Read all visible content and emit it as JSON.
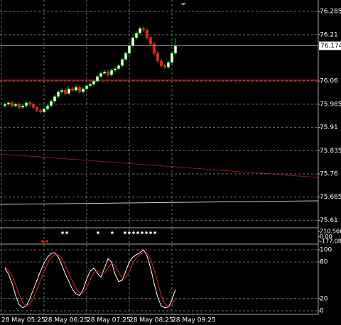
{
  "chart_data": [
    {
      "type": "candlestick",
      "x": [
        "28 May 05:30",
        "28 May 05:35",
        "28 May 05:40",
        "28 May 05:45",
        "28 May 05:50",
        "28 May 05:55",
        "28 May 06:00",
        "28 May 06:05",
        "28 May 06:10",
        "28 May 06:15",
        "28 May 06:20",
        "28 May 06:25",
        "28 May 06:30",
        "28 May 06:35",
        "28 May 06:40",
        "28 May 06:45",
        "28 May 06:50",
        "28 May 06:55",
        "28 May 07:00",
        "28 May 07:05",
        "28 May 07:10",
        "28 May 07:15",
        "28 May 07:20",
        "28 May 07:25",
        "28 May 07:30",
        "28 May 07:35",
        "28 May 07:40",
        "28 May 07:45",
        "28 May 07:50",
        "28 May 07:55",
        "28 May 08:00",
        "28 May 08:05",
        "28 May 08:10",
        "28 May 08:15",
        "28 May 08:20",
        "28 May 08:25",
        "28 May 08:30",
        "28 May 08:35",
        "28 May 08:40",
        "28 May 08:45",
        "28 May 08:50",
        "28 May 08:55",
        "28 May 09:00",
        "28 May 09:05",
        "28 May 09:10",
        "28 May 09:15",
        "28 May 09:20",
        "28 May 09:25",
        "28 May 09:30"
      ],
      "open": [
        75.98,
        75.985,
        75.99,
        75.98,
        75.985,
        75.975,
        75.98,
        75.99,
        75.985,
        75.975,
        75.965,
        75.96,
        75.97,
        75.98,
        75.995,
        76.01,
        76.025,
        76.03,
        76.02,
        76.035,
        76.03,
        76.04,
        76.025,
        76.035,
        76.045,
        76.05,
        76.06,
        76.075,
        76.085,
        76.09,
        76.08,
        76.095,
        76.1,
        76.11,
        76.13,
        76.15,
        76.175,
        76.2,
        76.215,
        76.23,
        76.225,
        76.2,
        76.18,
        76.15,
        76.125,
        76.11,
        76.105,
        76.12,
        76.15
      ],
      "high": [
        75.991,
        75.996,
        75.996,
        75.991,
        75.991,
        75.986,
        75.996,
        75.996,
        75.991,
        75.981,
        75.971,
        75.976,
        75.986,
        76.001,
        76.016,
        76.031,
        76.036,
        76.036,
        76.041,
        76.041,
        76.046,
        76.046,
        76.041,
        76.051,
        76.056,
        76.066,
        76.081,
        76.091,
        76.096,
        76.096,
        76.101,
        76.106,
        76.116,
        76.136,
        76.156,
        76.181,
        76.206,
        76.221,
        76.236,
        76.236,
        76.231,
        76.206,
        76.186,
        76.156,
        76.131,
        76.116,
        76.126,
        76.156,
        76.2
      ],
      "low": [
        75.974,
        75.979,
        75.974,
        75.974,
        75.969,
        75.969,
        75.974,
        75.979,
        75.969,
        75.959,
        75.954,
        75.954,
        75.964,
        75.974,
        75.989,
        76.004,
        76.019,
        76.014,
        76.014,
        76.024,
        76.024,
        76.019,
        76.019,
        76.029,
        76.039,
        76.044,
        76.054,
        76.069,
        76.079,
        76.074,
        76.074,
        76.089,
        76.094,
        76.104,
        76.124,
        76.144,
        76.169,
        76.194,
        76.209,
        76.219,
        76.194,
        76.174,
        76.144,
        76.119,
        76.104,
        76.099,
        76.099,
        76.114,
        76.144
      ],
      "close": [
        75.985,
        75.99,
        75.98,
        75.985,
        75.975,
        75.98,
        75.99,
        75.985,
        75.975,
        75.965,
        75.96,
        75.97,
        75.98,
        75.995,
        76.01,
        76.025,
        76.03,
        76.02,
        76.035,
        76.03,
        76.04,
        76.025,
        76.035,
        76.045,
        76.05,
        76.06,
        76.075,
        76.085,
        76.09,
        76.08,
        76.095,
        76.1,
        76.11,
        76.13,
        76.15,
        76.175,
        76.2,
        76.215,
        76.23,
        76.225,
        76.2,
        76.18,
        76.15,
        76.125,
        76.11,
        76.105,
        76.12,
        76.15,
        76.174
      ],
      "up_color": "#ffffff",
      "down_color": "#e0201e",
      "wick_color": "#00c000",
      "ylim": [
        75.588,
        76.322
      ],
      "yticks": [
        76.285,
        76.21,
        76.06,
        75.985,
        75.91,
        75.835,
        75.76,
        75.685,
        75.61
      ],
      "xticks": [
        "28 May 05:25",
        "28 May 06:25",
        "28 May 07:25",
        "28 May 08:25",
        "28 May 09:25"
      ],
      "current_price": 76.174,
      "grid": true
    },
    {
      "type": "indicator",
      "ylim": [
        -260,
        321
      ],
      "yticks": [
        210.5664,
        {
          "value": 0,
          "label": "0.00"
        },
        -177.084
      ]
    },
    {
      "type": "line",
      "series": [
        {
          "color": "#ffffff",
          "values": [
            70,
            60,
            45,
            25,
            10,
            5,
            8,
            20,
            35,
            50,
            65,
            78,
            88,
            94,
            95,
            88,
            75,
            60,
            48,
            35,
            28,
            25,
            35,
            52,
            65,
            70,
            62,
            55,
            70,
            85,
            80,
            60,
            48,
            50,
            65,
            80,
            88,
            92,
            95,
            100,
            90,
            70,
            45,
            22,
            8,
            5,
            6,
            18,
            35
          ]
        },
        {
          "color": "#e0201e",
          "values": [
            72,
            66,
            58,
            43,
            27,
            13,
            8,
            11,
            21,
            35,
            50,
            64,
            77,
            87,
            92,
            92,
            86,
            74,
            61,
            48,
            37,
            29,
            29,
            37,
            51,
            62,
            66,
            62,
            62,
            70,
            78,
            75,
            63,
            53,
            54,
            64,
            78,
            87,
            92,
            96,
            95,
            85,
            68,
            46,
            25,
            12,
            6,
            10,
            20
          ]
        }
      ],
      "ylim": [
        -5.8,
        108.1
      ],
      "yticks": [
        100,
        80,
        20,
        0
      ],
      "grid": true
    }
  ]
}
